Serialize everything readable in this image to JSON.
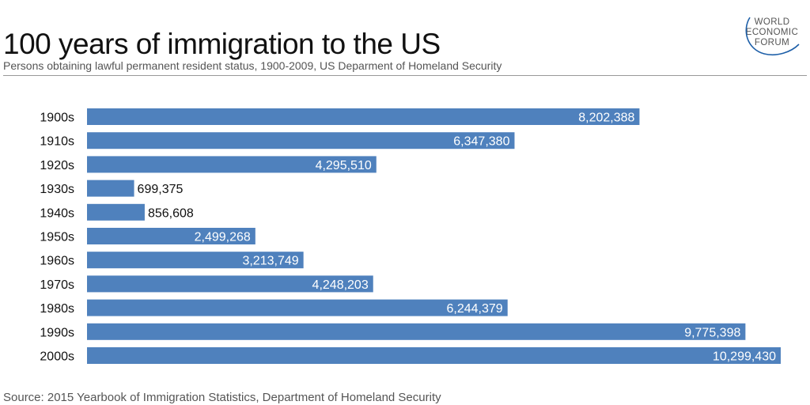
{
  "title": "100 years of immigration to the US",
  "subtitle": "Persons obtaining lawful permanent resident status, 1900-2009, US Deparment of Homeland Security",
  "source": "Source: 2015 Yearbook of Immigration Statistics, Department of Homeland Security",
  "logo": {
    "lines": [
      "WORLD",
      "ECONOMIC",
      "FORUM"
    ],
    "icon": "wef-arc-logo"
  },
  "colors": {
    "bar": "#4f81bd",
    "label_inside": "#ffffff",
    "label_outside": "#111111"
  },
  "chart_data": {
    "type": "bar",
    "orientation": "horizontal",
    "title": "100 years of immigration to the US",
    "xlabel": "",
    "ylabel": "",
    "xlim": [
      0,
      10299430
    ],
    "grid": false,
    "legend": "none",
    "categories": [
      "1900s",
      "1910s",
      "1920s",
      "1930s",
      "1940s",
      "1950s",
      "1960s",
      "1970s",
      "1980s",
      "1990s",
      "2000s"
    ],
    "values": [
      8202388,
      6347380,
      4295510,
      699375,
      856608,
      2499268,
      3213749,
      4248203,
      6244379,
      9775398,
      10299430
    ],
    "value_labels": [
      "8,202,388",
      "6,347,380",
      "4,295,510",
      "699,375",
      "856,608",
      "2,499,268",
      "3,213,749",
      "4,248,203",
      "6,244,379",
      "9,775,398",
      "10,299,430"
    ]
  }
}
